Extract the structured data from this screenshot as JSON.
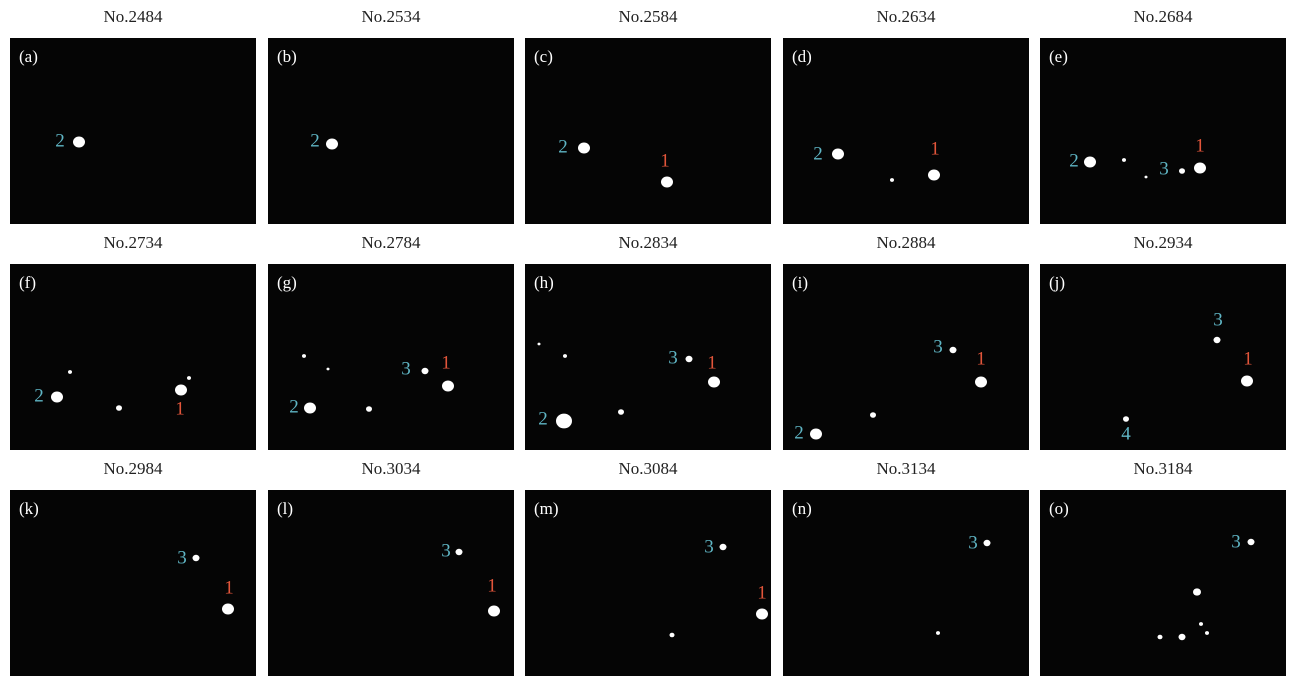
{
  "panels": [
    {
      "title": "No.2484",
      "tag": "(a)",
      "labels": [
        {
          "text": "2",
          "color": "#5fb5c4"
        }
      ]
    },
    {
      "title": "No.2534",
      "tag": "(b)",
      "labels": [
        {
          "text": "2",
          "color": "#5fb5c4"
        }
      ]
    },
    {
      "title": "No.2584",
      "tag": "(c)",
      "labels": [
        {
          "text": "2",
          "color": "#5fb5c4"
        },
        {
          "text": "1",
          "color": "#e2553a"
        }
      ]
    },
    {
      "title": "No.2634",
      "tag": "(d)",
      "labels": [
        {
          "text": "2",
          "color": "#5fb5c4"
        },
        {
          "text": "1",
          "color": "#e2553a"
        }
      ]
    },
    {
      "title": "No.2684",
      "tag": "(e)",
      "labels": [
        {
          "text": "2",
          "color": "#5fb5c4"
        },
        {
          "text": "3",
          "color": "#5fb5c4"
        },
        {
          "text": "1",
          "color": "#e2553a"
        }
      ]
    },
    {
      "title": "No.2734",
      "tag": "(f)",
      "labels": [
        {
          "text": "2",
          "color": "#5fb5c4"
        },
        {
          "text": "1",
          "color": "#e2553a"
        }
      ]
    },
    {
      "title": "No.2784",
      "tag": "(g)",
      "labels": [
        {
          "text": "3",
          "color": "#5fb5c4"
        },
        {
          "text": "1",
          "color": "#e2553a"
        },
        {
          "text": "2",
          "color": "#5fb5c4"
        }
      ]
    },
    {
      "title": "No.2834",
      "tag": "(h)",
      "labels": [
        {
          "text": "3",
          "color": "#5fb5c4"
        },
        {
          "text": "1",
          "color": "#e2553a"
        },
        {
          "text": "2",
          "color": "#5fb5c4"
        }
      ]
    },
    {
      "title": "No.2884",
      "tag": "(i)",
      "labels": [
        {
          "text": "3",
          "color": "#5fb5c4"
        },
        {
          "text": "1",
          "color": "#e2553a"
        },
        {
          "text": "2",
          "color": "#5fb5c4"
        }
      ]
    },
    {
      "title": "No.2934",
      "tag": "(j)",
      "labels": [
        {
          "text": "3",
          "color": "#5fb5c4"
        },
        {
          "text": "1",
          "color": "#e2553a"
        },
        {
          "text": "4",
          "color": "#5fb5c4"
        }
      ]
    },
    {
      "title": "No.2984",
      "tag": "(k)",
      "labels": [
        {
          "text": "3",
          "color": "#5fb5c4"
        },
        {
          "text": "1",
          "color": "#e2553a"
        }
      ]
    },
    {
      "title": "No.3034",
      "tag": "(l)",
      "labels": [
        {
          "text": "3",
          "color": "#5fb5c4"
        },
        {
          "text": "1",
          "color": "#e2553a"
        }
      ]
    },
    {
      "title": "No.3084",
      "tag": "(m)",
      "labels": [
        {
          "text": "3",
          "color": "#5fb5c4"
        },
        {
          "text": "1",
          "color": "#e2553a"
        }
      ]
    },
    {
      "title": "No.3134",
      "tag": "(n)",
      "labels": [
        {
          "text": "3",
          "color": "#5fb5c4"
        }
      ]
    },
    {
      "title": "No.3184",
      "tag": "(o)",
      "labels": [
        {
          "text": "3",
          "color": "#5fb5c4"
        }
      ]
    }
  ]
}
